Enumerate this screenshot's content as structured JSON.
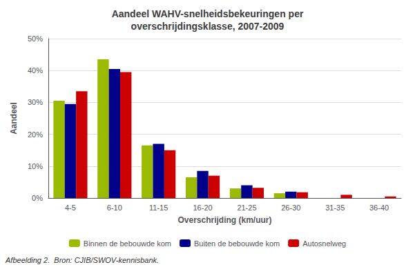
{
  "chart_data": {
    "type": "bar",
    "title": "Aandeel WAHV-snelheidsbekeuringen per\noverschrijdingsklasse, 2007-2009",
    "xlabel": "Overschrijding (km/uur)",
    "ylabel": "Aandeel",
    "categories": [
      "4-5",
      "6-10",
      "11-15",
      "16-20",
      "21-25",
      "26-30",
      "31-35",
      "36-40"
    ],
    "series": [
      {
        "name": "Binnen de bebouwde kom",
        "color": "#9BBB00",
        "values": [
          30.5,
          43.5,
          16.5,
          6.5,
          3.0,
          1.5,
          0.0,
          0.0
        ]
      },
      {
        "name": "Buiten de bebouwde kom",
        "color": "#00008B",
        "values": [
          29.5,
          40.5,
          17.0,
          8.5,
          4.0,
          2.0,
          0.0,
          0.0
        ]
      },
      {
        "name": "Autosnelweg",
        "color": "#CC0000",
        "values": [
          33.5,
          39.5,
          15.0,
          7.0,
          3.2,
          1.8,
          1.0,
          0.5
        ]
      }
    ],
    "ylim": [
      0,
      50
    ],
    "yticks": [
      {
        "value": 0,
        "label": "0%"
      },
      {
        "value": 10,
        "label": "10%"
      },
      {
        "value": 20,
        "label": "20%"
      },
      {
        "value": 30,
        "label": "30%"
      },
      {
        "value": 40,
        "label": "40%"
      },
      {
        "value": 50,
        "label": "50%"
      }
    ],
    "grid": true,
    "legend": "bottom",
    "caption": "Afbeelding 2.  Bron: CJIB/SWOV-kennisbank."
  }
}
